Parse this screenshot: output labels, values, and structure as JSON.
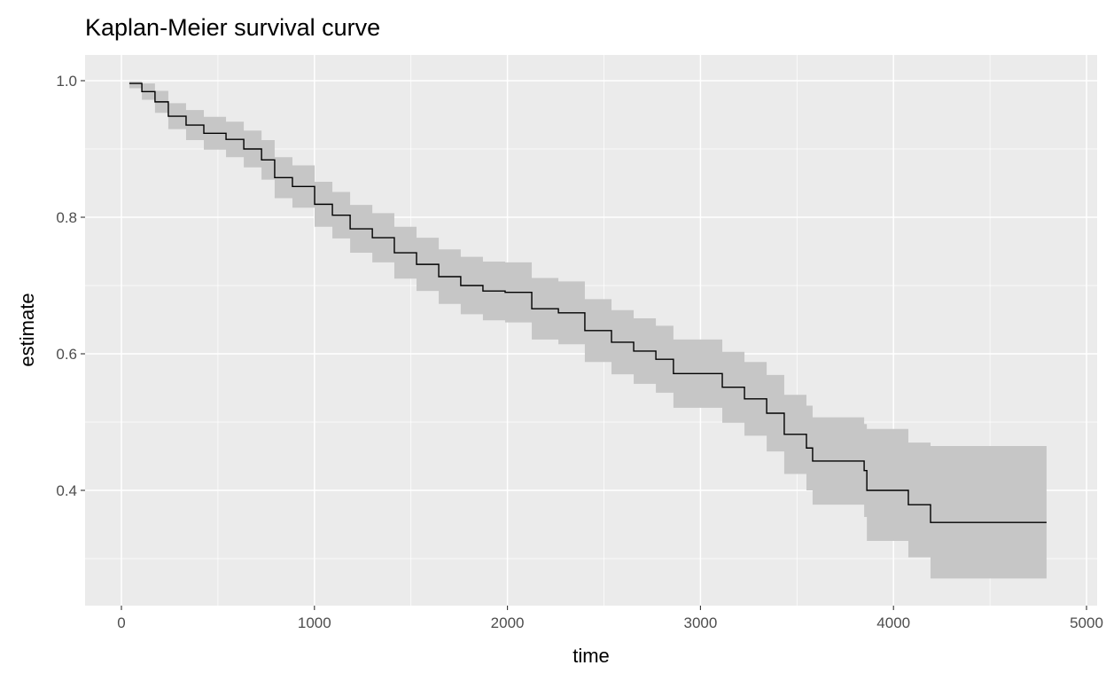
{
  "chart_data": {
    "type": "line",
    "subtype": "step-with-confidence-band",
    "title": "Kaplan-Meier survival curve",
    "xlabel": "time",
    "ylabel": "estimate",
    "xlim": [
      -200,
      5000
    ],
    "ylim": [
      0.24,
      1.04
    ],
    "xticks": [
      0,
      1000,
      2000,
      3000,
      4000,
      5000
    ],
    "xtick_labels": [
      "0",
      "1000",
      "2000",
      "3000",
      "4000",
      "5000"
    ],
    "yticks": [
      0.4,
      0.6,
      0.8,
      1.0
    ],
    "ytick_labels": [
      "0.4",
      "0.6",
      "0.8",
      "1.0"
    ],
    "grid": true,
    "colors": {
      "panel": "#ebebeb",
      "grid": "#ffffff",
      "band": "#c6c6c6",
      "line": "#000000"
    },
    "series": [
      {
        "name": "estimate",
        "x": [
          41,
          106,
          174,
          243,
          335,
          427,
          542,
          634,
          726,
          794,
          886,
          1001,
          1093,
          1185,
          1300,
          1414,
          1529,
          1644,
          1758,
          1873,
          1988,
          2126,
          2264,
          2401,
          2539,
          2654,
          2769,
          2860,
          3113,
          3228,
          3343,
          3434,
          3549,
          3581,
          3848,
          3862,
          4077,
          4192,
          4793
        ],
        "y": [
          0.996,
          0.984,
          0.969,
          0.948,
          0.935,
          0.923,
          0.914,
          0.9,
          0.884,
          0.858,
          0.845,
          0.819,
          0.803,
          0.783,
          0.77,
          0.748,
          0.731,
          0.713,
          0.7,
          0.692,
          0.69,
          0.666,
          0.66,
          0.634,
          0.617,
          0.604,
          0.592,
          0.571,
          0.551,
          0.534,
          0.513,
          0.482,
          0.462,
          0.443,
          0.429,
          0.4,
          0.379,
          0.353,
          0.353
        ],
        "lower": [
          0.989,
          0.972,
          0.953,
          0.929,
          0.913,
          0.899,
          0.888,
          0.873,
          0.855,
          0.828,
          0.814,
          0.786,
          0.769,
          0.748,
          0.734,
          0.71,
          0.692,
          0.673,
          0.658,
          0.649,
          0.646,
          0.621,
          0.614,
          0.588,
          0.57,
          0.556,
          0.543,
          0.521,
          0.499,
          0.48,
          0.457,
          0.424,
          0.4,
          0.379,
          0.361,
          0.326,
          0.302,
          0.271,
          0.271
        ],
        "upper": [
          0.999,
          0.996,
          0.985,
          0.967,
          0.957,
          0.947,
          0.94,
          0.927,
          0.913,
          0.888,
          0.876,
          0.852,
          0.837,
          0.818,
          0.806,
          0.786,
          0.77,
          0.753,
          0.742,
          0.735,
          0.734,
          0.711,
          0.706,
          0.68,
          0.664,
          0.652,
          0.641,
          0.621,
          0.603,
          0.588,
          0.569,
          0.54,
          0.524,
          0.507,
          0.497,
          0.49,
          0.47,
          0.465,
          0.465
        ]
      }
    ]
  }
}
